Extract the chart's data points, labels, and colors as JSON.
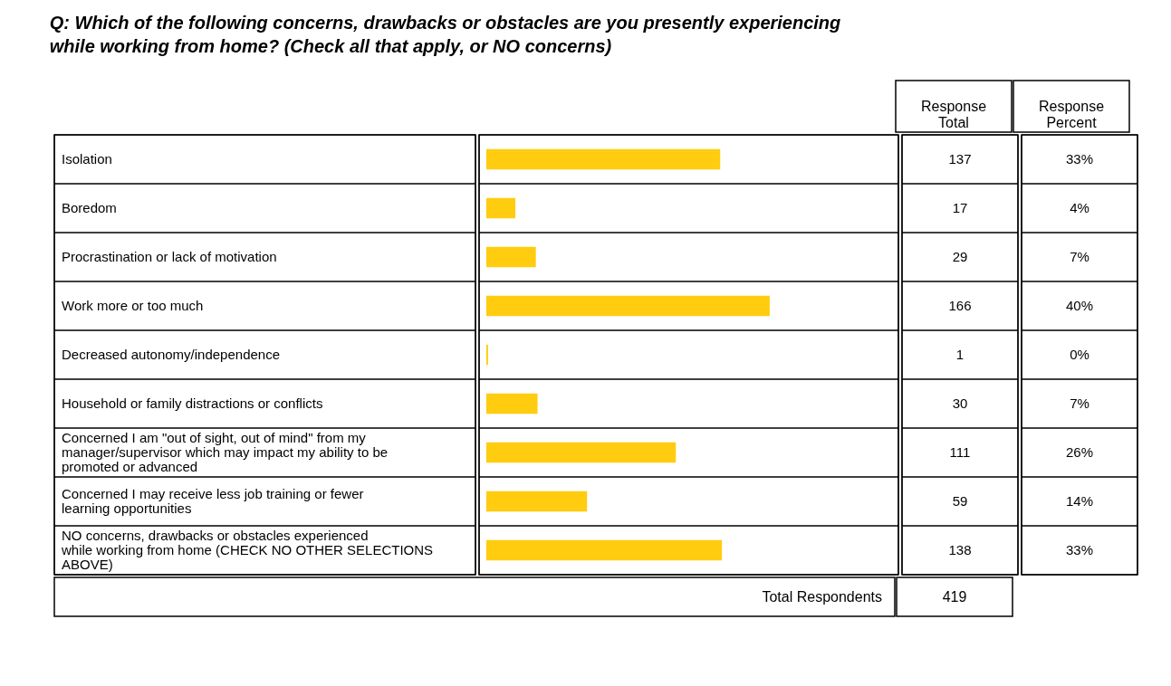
{
  "chart_data": {
    "type": "bar",
    "orientation": "horizontal",
    "title": "Q:  Which of the following concerns, drawbacks or obstacles are you presently experiencing while working from home? (Check all that apply, or NO concerns)",
    "categories": [
      "Isolation",
      "Boredom",
      "Procrastination or lack of motivation",
      "Work more or too much",
      "Decreased autonomy/independence",
      "Household or family distractions or conflicts",
      "Concerned I am \"out of sight, out of mind\" from my manager/supervisor which may impact my ability to be promoted or advanced",
      "Concerned I may receive less job training or fewer learning opportunities",
      "NO concerns, drawbacks or obstacles experienced while working from home (CHECK NO OTHER SELECTIONS ABOVE)"
    ],
    "values": [
      137,
      17,
      29,
      166,
      1,
      30,
      111,
      59,
      138
    ],
    "color": "#ffcc0f",
    "data_labels": true,
    "annotations": [
      "Response Total",
      "Response Percent",
      "33%",
      "4%",
      "7%",
      "40%",
      "0%",
      "7%",
      "26%",
      "14%",
      "33%",
      "Total Respondents",
      "419"
    ]
  }
}
